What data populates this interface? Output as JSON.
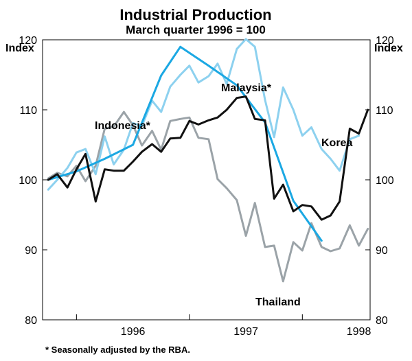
{
  "chart_data": {
    "type": "line",
    "title": "Industrial Production",
    "subtitle": "March quarter 1996 = 100",
    "ylabel_left": "Index",
    "ylabel_right": "Index",
    "ylim": [
      80,
      120
    ],
    "yticks": [
      80,
      90,
      100,
      110,
      120
    ],
    "xlim": [
      1995.7,
      1998.6
    ],
    "xticks": [
      {
        "label": "1996",
        "x": 1996.5
      },
      {
        "label": "1997",
        "x": 1997.5
      },
      {
        "label": "1998",
        "x": 1998.5
      }
    ],
    "footnote": "* Seasonally adjusted by the RBA.",
    "series": [
      {
        "name": "Thailand",
        "color": "#9ba3a8",
        "x": [
          1995.75,
          1995.83,
          1995.92,
          1996.0,
          1996.08,
          1996.17,
          1996.25,
          1996.33,
          1996.42,
          1996.5,
          1996.58,
          1996.67,
          1996.75,
          1996.83,
          1996.92,
          1997.0,
          1997.08,
          1997.17,
          1997.25,
          1997.33,
          1997.42,
          1997.5,
          1997.58,
          1997.67,
          1997.75,
          1997.83,
          1997.92,
          1998.0,
          1998.08,
          1998.17,
          1998.25,
          1998.33,
          1998.42,
          1998.5,
          1998.58
        ],
        "values": [
          100.2,
          101.0,
          100.5,
          102.0,
          99.8,
          102.0,
          107.3,
          107.6,
          109.7,
          107.8,
          104.9,
          107.0,
          104.3,
          108.4,
          108.7,
          108.9,
          106.0,
          105.8,
          100.1,
          98.8,
          97.1,
          92.0,
          96.7,
          90.4,
          90.6,
          85.5,
          91.1,
          89.9,
          93.8,
          90.4,
          89.8,
          90.2,
          93.5,
          90.6,
          93.0
        ]
      },
      {
        "name": "Malaysia*",
        "color": "#8dd1ef",
        "x": [
          1995.75,
          1995.83,
          1995.92,
          1996.0,
          1996.08,
          1996.17,
          1996.25,
          1996.33,
          1996.42,
          1996.5,
          1996.58,
          1996.67,
          1996.75,
          1996.83,
          1996.92,
          1997.0,
          1997.08,
          1997.17,
          1997.25,
          1997.33,
          1997.42,
          1997.5,
          1997.58,
          1997.67,
          1997.75,
          1997.83,
          1997.92,
          1998.0,
          1998.08,
          1998.17,
          1998.25,
          1998.33,
          1998.42,
          1998.5
        ],
        "values": [
          98.6,
          100.0,
          101.7,
          103.9,
          104.4,
          100.8,
          106.2,
          102.2,
          104.3,
          108.1,
          107.7,
          111.3,
          109.7,
          113.3,
          115.0,
          116.3,
          113.9,
          114.8,
          116.6,
          113.7,
          118.7,
          120.1,
          119.0,
          111.4,
          106.1,
          113.2,
          110.0,
          106.3,
          107.5,
          104.4,
          103.0,
          101.3,
          105.8,
          106.3
        ]
      },
      {
        "name": "Indonesia*",
        "color": "#1ba8e3",
        "x": [
          1995.75,
          1996.0,
          1996.25,
          1996.5,
          1996.75,
          1996.92,
          1997.17,
          1997.42,
          1997.67,
          1997.92,
          1998.17
        ],
        "values": [
          100.0,
          101.2,
          103.0,
          105.0,
          114.9,
          119.0,
          116.3,
          113.5,
          108.2,
          97.0,
          91.3
        ]
      },
      {
        "name": "Korea",
        "color": "#111111",
        "x": [
          1995.75,
          1995.83,
          1995.92,
          1996.0,
          1996.08,
          1996.17,
          1996.25,
          1996.33,
          1996.42,
          1996.5,
          1996.58,
          1996.67,
          1996.75,
          1996.83,
          1996.92,
          1997.0,
          1997.08,
          1997.17,
          1997.25,
          1997.33,
          1997.42,
          1997.5,
          1997.58,
          1997.67,
          1997.75,
          1997.83,
          1997.92,
          1998.0,
          1998.08,
          1998.17,
          1998.25,
          1998.33,
          1998.42,
          1998.5,
          1998.58
        ],
        "values": [
          100.0,
          100.8,
          98.9,
          101.5,
          103.7,
          96.9,
          101.5,
          101.3,
          101.3,
          102.6,
          104.0,
          105.1,
          104.0,
          105.9,
          106.0,
          108.4,
          107.9,
          108.5,
          108.9,
          110.0,
          111.7,
          111.9,
          108.7,
          108.5,
          97.3,
          99.3,
          95.5,
          96.4,
          96.2,
          94.3,
          94.9,
          96.9,
          107.3,
          106.6,
          110.0
        ]
      }
    ],
    "annotations": [
      {
        "text": "Malaysia*",
        "series": "Malaysia*"
      },
      {
        "text": "Indonesia*",
        "series": "Indonesia*"
      },
      {
        "text": "Korea",
        "series": "Korea"
      },
      {
        "text": "Thailand",
        "series": "Thailand"
      }
    ]
  }
}
